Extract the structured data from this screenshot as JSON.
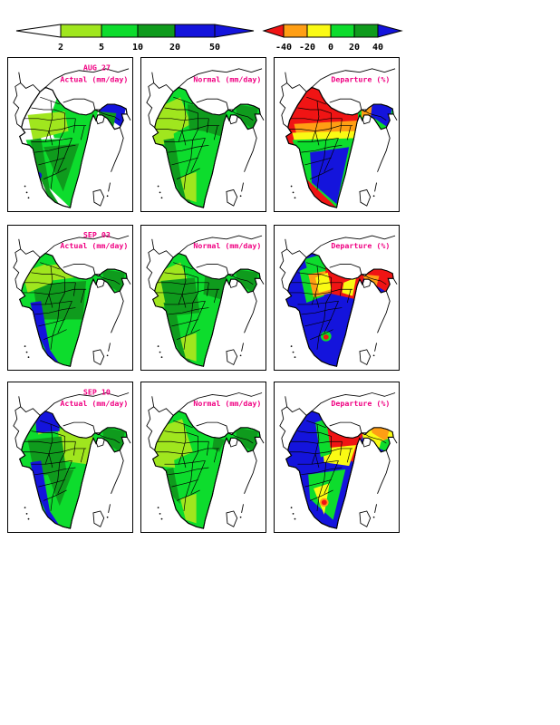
{
  "palette": {
    "white": "#ffffff",
    "chartreuse": "#a0e61e",
    "green": "#0ddc2d",
    "darkgreen": "#0f9b1d",
    "blue": "#1414dc",
    "red": "#f01414",
    "orange": "#ff9e14",
    "yellow": "#fafa14",
    "title": "#f00082",
    "outline": "#000000"
  },
  "chart_data": {
    "type": "choropleth-map-grid",
    "region": "India",
    "grid": {
      "rows": 3,
      "cols": 3
    },
    "row_dates": [
      "AUG 27",
      "SEP 03",
      "SEP 10"
    ],
    "column_titles": [
      "Actual (mm/day)",
      "Normal (mm/day)",
      "Departure (%)"
    ],
    "colorbars": [
      {
        "name": "rainfall-scale",
        "units": "mm/day",
        "ticks": [
          2,
          5,
          10,
          20,
          50
        ],
        "segment_colors": [
          "chartreuse",
          "green",
          "darkgreen",
          "blue"
        ],
        "under_color": "white",
        "over_color": "blue"
      },
      {
        "name": "departure-scale",
        "units": "%",
        "ticks": [
          -40,
          -20,
          0,
          20,
          40
        ],
        "segment_colors": [
          "orange",
          "yellow",
          "green",
          "darkgreen"
        ],
        "under_color": "red",
        "over_color": "blue"
      }
    ],
    "panels": [
      {
        "row": 0,
        "col": 0,
        "date": "AUG 27",
        "title": "Actual (mm/day)",
        "scale": "rainfall",
        "base": "white",
        "shading": [
          {
            "region": "east-half",
            "color": "green"
          },
          {
            "region": "peninsula",
            "color": "green"
          },
          {
            "region": "west-central-light",
            "color": "chartreuse"
          },
          {
            "region": "south-interior-dark",
            "color": "darkgreen"
          },
          {
            "region": "west-coast-strip",
            "color": "darkgreen"
          },
          {
            "region": "northeast-blue",
            "color": "blue"
          },
          {
            "region": "northeast-dark-low",
            "color": "darkgreen"
          },
          {
            "region": "southwest-coast-spot",
            "color": "blue",
            "circle": [
              34,
              132,
              4
            ]
          }
        ]
      },
      {
        "row": 0,
        "col": 1,
        "date": "AUG 27",
        "title": "Normal (mm/day)",
        "scale": "rainfall",
        "base": "green",
        "shading": [
          {
            "region": "northwest-light",
            "color": "chartreuse"
          },
          {
            "region": "gujarat-light",
            "color": "chartreuse"
          },
          {
            "region": "center-dark",
            "color": "darkgreen"
          },
          {
            "region": "east-center-dark",
            "color": "darkgreen"
          },
          {
            "region": "west-coast-strip",
            "color": "darkgreen"
          },
          {
            "region": "northeast-dark",
            "color": "darkgreen"
          },
          {
            "region": "south-tip-light",
            "color": "chartreuse"
          }
        ]
      },
      {
        "row": 0,
        "col": 2,
        "date": "AUG 27",
        "title": "Departure (%)",
        "scale": "departure",
        "base": "red",
        "shading": [
          {
            "region": "orange-band",
            "color": "orange"
          },
          {
            "region": "yellow-band",
            "color": "yellow"
          },
          {
            "region": "peninsula",
            "color": "green"
          },
          {
            "region": "peninsula-blue",
            "color": "blue"
          },
          {
            "region": "northeast",
            "color": "green"
          },
          {
            "region": "northeast-blue",
            "color": "blue"
          },
          {
            "region": "northeast-orange",
            "color": "orange"
          }
        ]
      },
      {
        "row": 1,
        "col": 0,
        "date": "SEP 03",
        "title": "Actual (mm/day)",
        "scale": "rainfall",
        "base": "green",
        "shading": [
          {
            "region": "central-dark-big",
            "color": "darkgreen"
          },
          {
            "region": "northwest-light-small",
            "color": "chartreuse"
          },
          {
            "region": "north-pocket-light",
            "color": "chartreuse"
          },
          {
            "region": "west-coast-strip",
            "color": "blue"
          },
          {
            "region": "northeast-dark",
            "color": "darkgreen"
          }
        ]
      },
      {
        "row": 1,
        "col": 1,
        "date": "SEP 03",
        "title": "Normal (mm/day)",
        "scale": "rainfall",
        "base": "green",
        "shading": [
          {
            "region": "northwest-light",
            "color": "chartreuse"
          },
          {
            "region": "gujarat-light",
            "color": "chartreuse"
          },
          {
            "region": "west-central-dark",
            "color": "darkgreen"
          },
          {
            "region": "east-center-dark",
            "color": "darkgreen"
          },
          {
            "region": "west-coast-strip",
            "color": "darkgreen"
          },
          {
            "region": "northeast-dark",
            "color": "darkgreen"
          },
          {
            "region": "south-tip-light",
            "color": "chartreuse"
          }
        ]
      },
      {
        "row": 1,
        "col": 2,
        "date": "SEP 03",
        "title": "Departure (%)",
        "scale": "departure",
        "base": "blue",
        "shading": [
          {
            "region": "north-red-band",
            "color": "red"
          },
          {
            "region": "northeast-red",
            "color": "red"
          },
          {
            "region": "northeast-orange-band",
            "color": "orange"
          },
          {
            "region": "green-strip-west",
            "color": "green"
          },
          {
            "region": "orange-pocket",
            "color": "orange"
          },
          {
            "region": "yellow-pocket",
            "color": "yellow"
          },
          {
            "region": "east-yellow-pocket",
            "color": "yellow"
          },
          {
            "region": "kashmir-green",
            "color": "green"
          },
          {
            "region": "tamil-nadu-pocket",
            "color": "green",
            "circle": [
              58,
              132,
              6
            ]
          },
          {
            "region": "tamil-nadu-spot",
            "color": "red",
            "circle": [
              58,
              133,
              3
            ]
          }
        ]
      },
      {
        "row": 2,
        "col": 0,
        "date": "SEP 10",
        "title": "Actual (mm/day)",
        "scale": "rainfall",
        "base": "green",
        "shading": [
          {
            "region": "east-light",
            "color": "chartreuse"
          },
          {
            "region": "west-central-dark",
            "color": "darkgreen"
          },
          {
            "region": "north-top-light",
            "color": "chartreuse"
          },
          {
            "region": "south-interior-small",
            "color": "darkgreen"
          },
          {
            "region": "west-coast-strip",
            "color": "blue"
          },
          {
            "region": "kashmir-blue",
            "color": "blue"
          },
          {
            "region": "northeast-dark",
            "color": "darkgreen"
          }
        ]
      },
      {
        "row": 2,
        "col": 1,
        "date": "SEP 10",
        "title": "Normal (mm/day)",
        "scale": "rainfall",
        "base": "green",
        "shading": [
          {
            "region": "northwest-light-large",
            "color": "chartreuse"
          },
          {
            "region": "gujarat-light",
            "color": "chartreuse"
          },
          {
            "region": "west-coast-dark-short",
            "color": "darkgreen"
          },
          {
            "region": "east-dark-small",
            "color": "darkgreen"
          },
          {
            "region": "northeast-dark",
            "color": "darkgreen"
          },
          {
            "region": "south-tip-light",
            "color": "chartreuse"
          }
        ]
      },
      {
        "row": 2,
        "col": 2,
        "date": "SEP 10",
        "title": "Departure (%)",
        "scale": "departure",
        "base": "blue",
        "shading": [
          {
            "region": "north-red-band-east",
            "color": "red"
          },
          {
            "region": "yellow-fringe-south",
            "color": "yellow"
          },
          {
            "region": "green-strip-narrow",
            "color": "green"
          },
          {
            "region": "northeast-yellow",
            "color": "yellow"
          },
          {
            "region": "northeast-orange-small",
            "color": "orange"
          },
          {
            "region": "northeast-green-tip",
            "color": "green"
          },
          {
            "region": "south-green",
            "color": "green"
          },
          {
            "region": "south-yellow",
            "color": "yellow"
          },
          {
            "region": "southeast-pocket",
            "color": "orange",
            "circle": [
              56,
              138,
              5
            ]
          },
          {
            "region": "southeast-spot",
            "color": "red",
            "circle": [
              56,
              138,
              3
            ]
          }
        ]
      }
    ]
  }
}
